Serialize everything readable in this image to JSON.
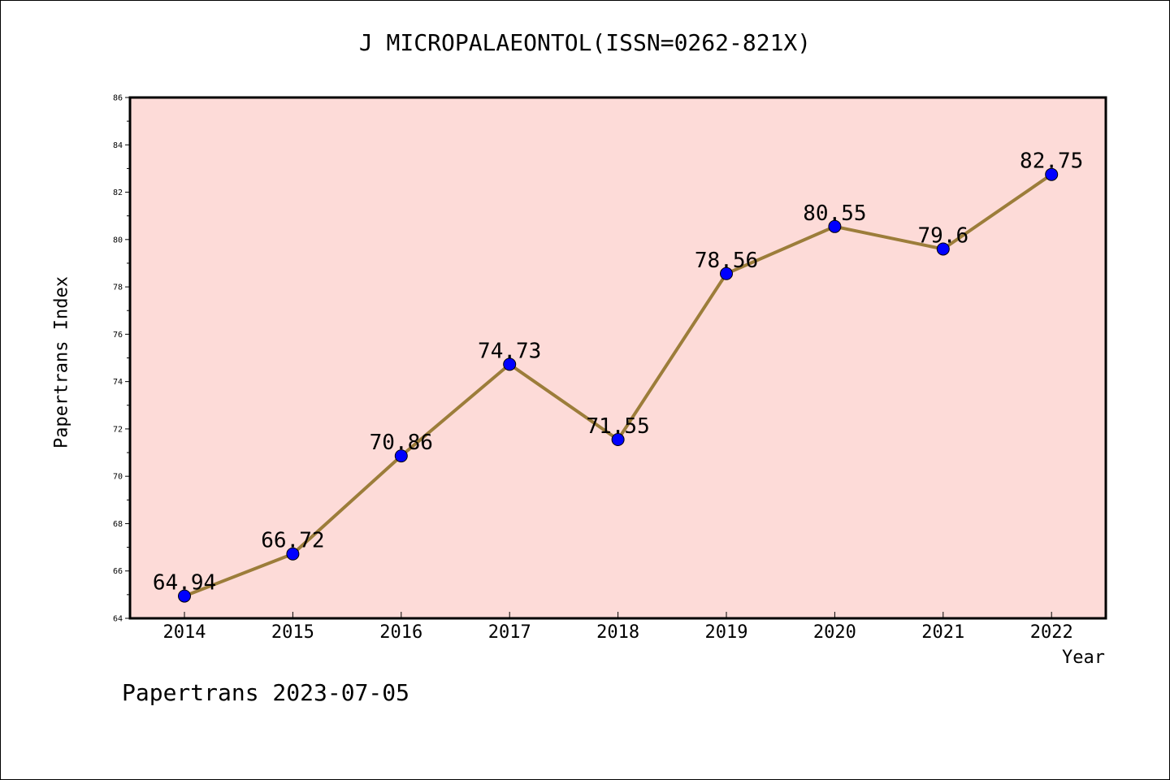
{
  "chart_data": {
    "type": "line",
    "title": "J MICROPALAEONTOL(ISSN=0262-821X)",
    "xlabel": "Year",
    "ylabel": "Papertrans Index",
    "categories": [
      "2014",
      "2015",
      "2016",
      "2017",
      "2018",
      "2019",
      "2020",
      "2021",
      "2022"
    ],
    "series": [
      {
        "values": [
          64.94,
          66.72,
          70.86,
          74.73,
          71.55,
          78.56,
          80.55,
          79.6,
          82.75
        ],
        "data_labels": [
          "64.94",
          "66.72",
          "70.86",
          "74.73",
          "71.55",
          "78.56",
          "80.55",
          "79.6",
          "82.75"
        ]
      }
    ],
    "ylim": [
      64,
      86
    ],
    "yticks": [
      "64",
      "66",
      "68",
      "70",
      "72",
      "74",
      "76",
      "78",
      "80",
      "82",
      "84",
      "86"
    ],
    "grid": false,
    "legend": "none",
    "colors": {
      "plot_background": "#fddbd8",
      "line": "#9c7d3a",
      "marker": "#0000ff"
    }
  },
  "footer": {
    "stamp": "Papertrans 2023-07-05"
  }
}
